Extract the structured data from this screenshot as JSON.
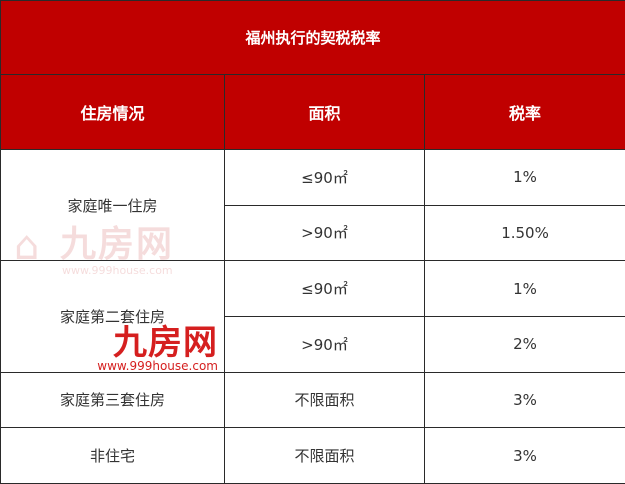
{
  "title": "福州执行的契税税率",
  "headers": [
    "住房情况",
    "面积",
    "税率"
  ],
  "rows": [
    {
      "situation": "家庭唯一住房",
      "area": "≤90㎡",
      "rate": "1%"
    },
    {
      "area": ">90㎡",
      "rate": "1.50%"
    },
    {
      "situation": "家庭第二套住房",
      "area": "≤90㎡",
      "rate": "1%"
    },
    {
      "area": ">90㎡",
      "rate": "2%"
    },
    {
      "situation": "家庭第三套住房",
      "area": "不限面积",
      "rate": "3%"
    },
    {
      "situation": "非住宅",
      "area": "不限面积",
      "rate": "3%"
    }
  ],
  "watermark": {
    "brand": "九房网",
    "url": "www.999house.com",
    "color": "#d51f1f"
  },
  "colors": {
    "header_bg": "#c00000"
  }
}
